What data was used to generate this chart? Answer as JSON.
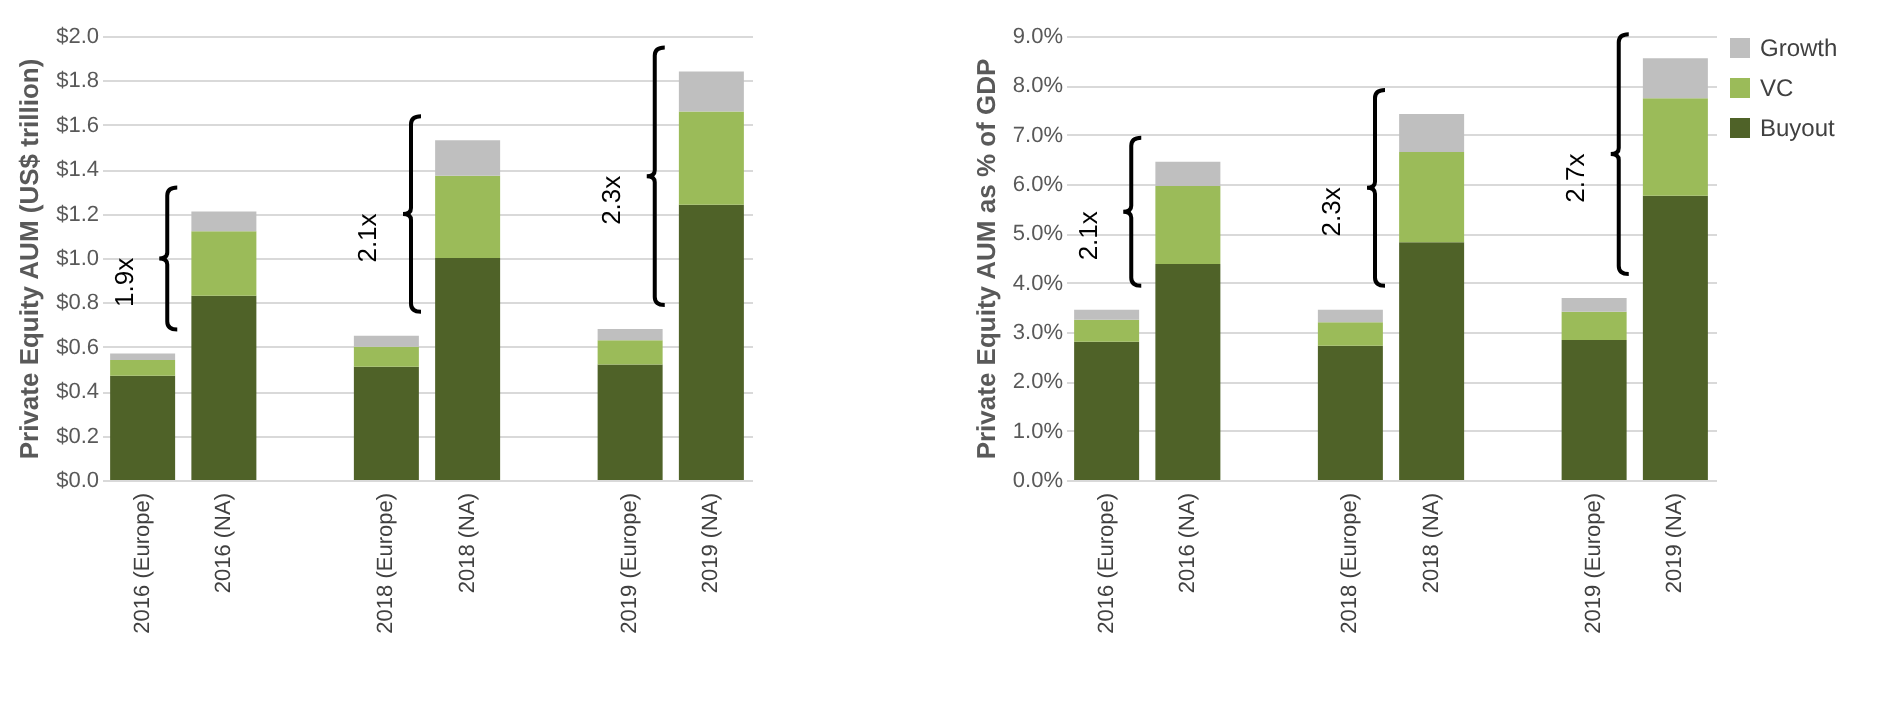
{
  "chart_data": [
    {
      "type": "bar",
      "stacked": true,
      "ylabel": "Private Equity AUM (US$ trillion)",
      "categories": [
        "2016 (Europe)",
        "2016 (NA)",
        null,
        "2018 (Europe)",
        "2018 (NA)",
        null,
        "2019 (Europe)",
        "2019 (NA)"
      ],
      "series": [
        {
          "color": "#4f6228",
          "values": [
            0.47,
            0.83,
            null,
            0.51,
            1.0,
            null,
            0.52,
            1.24
          ]
        },
        {
          "color": "#9bbb59",
          "values": [
            0.07,
            0.29,
            null,
            0.09,
            0.37,
            null,
            0.11,
            0.42
          ]
        },
        {
          "color": "#bfbfbf",
          "values": [
            0.03,
            0.09,
            null,
            0.05,
            0.16,
            null,
            0.05,
            0.18
          ]
        }
      ],
      "ylim": [
        0,
        2
      ],
      "yticks": [
        {
          "value": 0,
          "label": "$0.0"
        },
        {
          "value": 0.2,
          "label": "$0.2"
        },
        {
          "value": 0.4,
          "label": "$0.4"
        },
        {
          "value": 0.6,
          "label": "$0.6"
        },
        {
          "value": 0.8,
          "label": "$0.8"
        },
        {
          "value": 1,
          "label": "$1.0"
        },
        {
          "value": 1.2,
          "label": "$1.2"
        },
        {
          "value": 1.4,
          "label": "$1.4"
        },
        {
          "value": 1.6,
          "label": "$1.6"
        },
        {
          "value": 1.8,
          "label": "$1.8"
        },
        {
          "value": 2,
          "label": "$2.0"
        }
      ],
      "grid": "y",
      "legend": false,
      "annotations": [
        "1.9x",
        "2.1x",
        "2.3x"
      ]
    },
    {
      "type": "bar",
      "stacked": true,
      "ylabel": "Private Equity AUM as % of GDP",
      "categories": [
        "2016 (Europe)",
        "2016 (NA)",
        null,
        "2018 (Europe)",
        "2018 (NA)",
        null,
        "2019 (Europe)",
        "2019 (NA)"
      ],
      "series": [
        {
          "name": "Buyout",
          "color": "#4f6228",
          "values": [
            2.8,
            4.38,
            null,
            2.72,
            4.82,
            null,
            2.84,
            5.76
          ]
        },
        {
          "name": "VC",
          "color": "#9bbb59",
          "values": [
            0.45,
            1.58,
            null,
            0.48,
            1.83,
            null,
            0.57,
            1.98
          ]
        },
        {
          "name": "Growth",
          "color": "#bfbfbf",
          "values": [
            0.2,
            0.49,
            null,
            0.25,
            0.77,
            null,
            0.28,
            0.81
          ]
        }
      ],
      "ylim": [
        0,
        9
      ],
      "yticks": [
        {
          "value": 0,
          "label": "0.0%"
        },
        {
          "value": 1,
          "label": "1.0%"
        },
        {
          "value": 2,
          "label": "2.0%"
        },
        {
          "value": 3,
          "label": "3.0%"
        },
        {
          "value": 4,
          "label": "4.0%"
        },
        {
          "value": 5,
          "label": "5.0%"
        },
        {
          "value": 6,
          "label": "6.0%"
        },
        {
          "value": 7,
          "label": "7.0%"
        },
        {
          "value": 8,
          "label": "8.0%"
        },
        {
          "value": 9,
          "label": "9.0%"
        }
      ],
      "grid": "y",
      "legend": "right",
      "annotations": [
        "2.1x",
        "2.3x",
        "2.7x"
      ]
    }
  ]
}
